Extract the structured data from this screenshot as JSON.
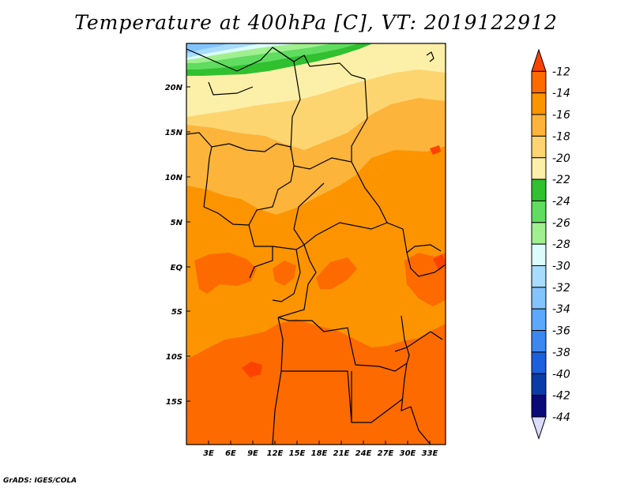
{
  "title": "Temperature at 400hPa [C], VT: 2019122912",
  "credit": "GrADS: IGES/COLA",
  "map": {
    "lat_labels": [
      "20N",
      "15N",
      "10N",
      "5N",
      "EQ",
      "5S",
      "10S",
      "15S"
    ],
    "lon_labels": [
      "3E",
      "6E",
      "9E",
      "12E",
      "15E",
      "18E",
      "21E",
      "24E",
      "27E",
      "30E",
      "33E"
    ]
  },
  "colorbar": {
    "labels": [
      "-12",
      "-14",
      "-16",
      "-18",
      "-20",
      "-22",
      "-24",
      "-26",
      "-28",
      "-30",
      "-32",
      "-34",
      "-36",
      "-38",
      "-40",
      "-42",
      "-44"
    ],
    "colors": [
      "#fc4200",
      "#fc6a00",
      "#fc9400",
      "#fcb43a",
      "#fcd570",
      "#fcf0a8",
      "#30c030",
      "#60dc60",
      "#a0f090",
      "#dcfcfc",
      "#a8dcfc",
      "#84c4fc",
      "#5ca8fc",
      "#3c88f0",
      "#1c60dc",
      "#0a3ca8",
      "#0a0a78",
      "#dcdcfc"
    ]
  }
}
